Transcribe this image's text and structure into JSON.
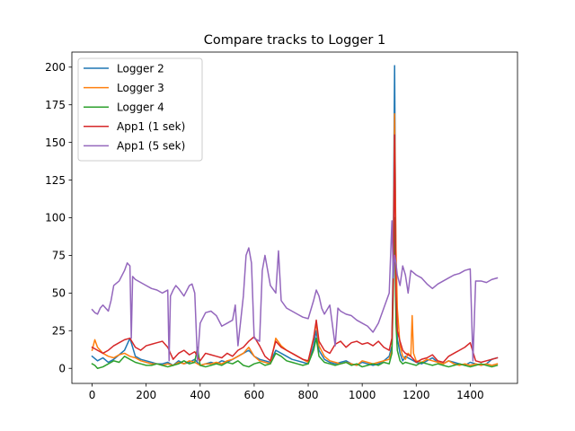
{
  "chart_data": {
    "type": "line",
    "title": "Compare tracks to Logger 1",
    "xlabel": "",
    "ylabel": "",
    "xlim": [
      -75,
      1575
    ],
    "ylim": [
      -10,
      210
    ],
    "xticks": [
      0,
      200,
      400,
      600,
      800,
      1000,
      1200,
      1400
    ],
    "yticks": [
      0,
      25,
      50,
      75,
      100,
      125,
      150,
      175,
      200
    ],
    "grid": false,
    "legend_position": "top-left",
    "series": [
      {
        "name": "Logger 2",
        "color": "#1f77b4",
        "x": [
          0,
          20,
          40,
          60,
          80,
          100,
          120,
          140,
          160,
          180,
          200,
          220,
          240,
          260,
          280,
          300,
          320,
          340,
          360,
          380,
          400,
          420,
          440,
          460,
          480,
          500,
          520,
          540,
          560,
          580,
          600,
          620,
          640,
          660,
          680,
          700,
          720,
          740,
          760,
          780,
          800,
          820,
          830,
          840,
          860,
          880,
          900,
          920,
          940,
          960,
          980,
          1000,
          1020,
          1040,
          1060,
          1080,
          1100,
          1110,
          1115,
          1120,
          1125,
          1130,
          1140,
          1150,
          1160,
          1180,
          1200,
          1220,
          1240,
          1260,
          1280,
          1300,
          1320,
          1340,
          1360,
          1380,
          1400,
          1420,
          1440,
          1460,
          1480,
          1500
        ],
        "y": [
          8,
          5,
          7,
          4,
          6,
          9,
          12,
          20,
          8,
          6,
          5,
          4,
          3,
          3,
          4,
          2,
          5,
          3,
          4,
          6,
          2,
          3,
          4,
          3,
          5,
          4,
          6,
          8,
          10,
          12,
          8,
          6,
          5,
          4,
          12,
          10,
          8,
          6,
          5,
          4,
          3,
          15,
          25,
          12,
          6,
          4,
          3,
          4,
          5,
          3,
          2,
          4,
          3,
          2,
          3,
          5,
          8,
          15,
          80,
          201,
          60,
          20,
          10,
          5,
          8,
          6,
          4,
          3,
          5,
          7,
          4,
          3,
          5,
          4,
          3,
          2,
          4,
          3,
          2,
          3,
          6,
          7
        ]
      },
      {
        "name": "Logger 3",
        "color": "#ff7f0e",
        "x": [
          0,
          10,
          20,
          40,
          60,
          80,
          100,
          120,
          140,
          160,
          180,
          200,
          220,
          240,
          260,
          280,
          300,
          320,
          340,
          360,
          380,
          400,
          420,
          440,
          460,
          480,
          500,
          520,
          540,
          560,
          580,
          600,
          620,
          640,
          660,
          680,
          700,
          720,
          740,
          760,
          780,
          800,
          820,
          830,
          840,
          860,
          880,
          900,
          920,
          940,
          960,
          980,
          1000,
          1020,
          1040,
          1060,
          1080,
          1100,
          1110,
          1115,
          1120,
          1125,
          1130,
          1140,
          1150,
          1160,
          1170,
          1180,
          1185,
          1190,
          1200,
          1220,
          1240,
          1260,
          1280,
          1300,
          1320,
          1340,
          1360,
          1380,
          1400,
          1420,
          1440,
          1460,
          1480,
          1500
        ],
        "y": [
          12,
          19,
          14,
          10,
          8,
          7,
          9,
          10,
          8,
          7,
          5,
          4,
          3,
          3,
          2,
          3,
          2,
          4,
          3,
          5,
          4,
          2,
          3,
          3,
          4,
          3,
          5,
          6,
          8,
          10,
          14,
          8,
          5,
          4,
          3,
          20,
          15,
          12,
          10,
          8,
          6,
          4,
          20,
          30,
          15,
          8,
          5,
          4,
          3,
          4,
          3,
          2,
          5,
          4,
          3,
          4,
          5,
          6,
          12,
          60,
          169,
          80,
          40,
          15,
          8,
          6,
          10,
          8,
          35,
          10,
          5,
          4,
          6,
          5,
          4,
          3,
          5,
          3,
          2,
          3,
          2,
          3,
          2,
          3,
          2,
          3
        ]
      },
      {
        "name": "Logger 4",
        "color": "#2ca02c",
        "x": [
          0,
          10,
          20,
          40,
          60,
          80,
          100,
          120,
          140,
          160,
          180,
          200,
          220,
          240,
          260,
          280,
          300,
          320,
          340,
          360,
          380,
          390,
          400,
          420,
          440,
          460,
          480,
          500,
          520,
          540,
          560,
          580,
          600,
          620,
          640,
          660,
          680,
          700,
          720,
          740,
          760,
          780,
          800,
          820,
          830,
          840,
          860,
          880,
          900,
          920,
          940,
          960,
          980,
          1000,
          1020,
          1040,
          1060,
          1080,
          1100,
          1110,
          1115,
          1120,
          1125,
          1130,
          1140,
          1150,
          1160,
          1180,
          1200,
          1220,
          1240,
          1260,
          1280,
          1300,
          1320,
          1340,
          1360,
          1380,
          1400,
          1420,
          1440,
          1460,
          1480,
          1500
        ],
        "y": [
          3,
          2,
          0,
          1,
          3,
          5,
          4,
          8,
          6,
          4,
          3,
          2,
          2,
          3,
          2,
          1,
          2,
          3,
          5,
          3,
          4,
          14,
          2,
          1,
          2,
          3,
          2,
          4,
          3,
          5,
          2,
          1,
          3,
          4,
          2,
          3,
          10,
          8,
          5,
          4,
          3,
          2,
          3,
          12,
          20,
          8,
          4,
          3,
          2,
          3,
          4,
          2,
          3,
          1,
          2,
          3,
          2,
          4,
          3,
          10,
          50,
          100,
          30,
          12,
          5,
          3,
          4,
          3,
          2,
          4,
          3,
          2,
          3,
          2,
          1,
          2,
          3,
          2,
          1,
          2,
          3,
          2,
          1,
          2
        ]
      },
      {
        "name": "App1 (1 sek)",
        "color": "#d62728",
        "x": [
          0,
          20,
          40,
          60,
          80,
          100,
          120,
          140,
          160,
          180,
          200,
          220,
          240,
          260,
          280,
          300,
          320,
          340,
          360,
          380,
          400,
          420,
          440,
          460,
          480,
          500,
          520,
          540,
          560,
          580,
          600,
          620,
          640,
          660,
          680,
          700,
          720,
          740,
          760,
          780,
          800,
          820,
          830,
          840,
          860,
          880,
          900,
          920,
          940,
          960,
          980,
          1000,
          1020,
          1040,
          1060,
          1080,
          1100,
          1110,
          1115,
          1120,
          1125,
          1130,
          1140,
          1150,
          1160,
          1180,
          1200,
          1220,
          1240,
          1260,
          1280,
          1300,
          1320,
          1340,
          1360,
          1380,
          1400,
          1420,
          1440,
          1460,
          1480,
          1500
        ],
        "y": [
          14,
          12,
          10,
          12,
          15,
          17,
          19,
          20,
          14,
          12,
          15,
          16,
          17,
          18,
          14,
          6,
          10,
          12,
          9,
          11,
          5,
          10,
          9,
          8,
          7,
          10,
          8,
          12,
          14,
          18,
          21,
          15,
          8,
          5,
          18,
          14,
          12,
          10,
          8,
          6,
          5,
          20,
          32,
          18,
          12,
          10,
          16,
          18,
          14,
          17,
          18,
          16,
          17,
          15,
          18,
          14,
          12,
          20,
          60,
          155,
          50,
          25,
          18,
          12,
          10,
          8,
          4,
          6,
          7,
          9,
          5,
          4,
          8,
          10,
          12,
          14,
          17,
          5,
          4,
          5,
          6,
          7
        ]
      },
      {
        "name": "App1 (5 sek)",
        "color": "#9467bd",
        "x": [
          0,
          10,
          20,
          30,
          40,
          60,
          70,
          80,
          100,
          120,
          130,
          140,
          145,
          150,
          160,
          180,
          200,
          220,
          240,
          260,
          270,
          280,
          285,
          290,
          300,
          310,
          320,
          340,
          360,
          370,
          380,
          390,
          400,
          420,
          440,
          460,
          480,
          500,
          520,
          530,
          540,
          560,
          570,
          580,
          590,
          600,
          620,
          630,
          640,
          660,
          680,
          690,
          700,
          720,
          740,
          760,
          780,
          800,
          820,
          830,
          840,
          850,
          860,
          880,
          900,
          910,
          920,
          940,
          960,
          980,
          1000,
          1020,
          1040,
          1060,
          1080,
          1100,
          1110,
          1115,
          1120,
          1125,
          1130,
          1140,
          1150,
          1160,
          1170,
          1180,
          1200,
          1220,
          1240,
          1260,
          1280,
          1300,
          1320,
          1340,
          1360,
          1380,
          1400,
          1410,
          1420,
          1440,
          1460,
          1480,
          1500
        ],
        "y": [
          39,
          37,
          36,
          40,
          42,
          38,
          45,
          55,
          58,
          65,
          70,
          68,
          20,
          61,
          59,
          57,
          55,
          53,
          52,
          50,
          51,
          52,
          5,
          48,
          52,
          55,
          53,
          48,
          55,
          56,
          50,
          5,
          30,
          37,
          38,
          35,
          28,
          30,
          32,
          42,
          15,
          48,
          75,
          80,
          70,
          20,
          18,
          65,
          75,
          55,
          50,
          78,
          45,
          40,
          38,
          36,
          34,
          33,
          45,
          52,
          48,
          40,
          36,
          42,
          15,
          40,
          38,
          36,
          35,
          32,
          30,
          28,
          24,
          30,
          40,
          50,
          98,
          60,
          75,
          70,
          62,
          55,
          68,
          62,
          50,
          65,
          62,
          60,
          56,
          53,
          56,
          58,
          60,
          62,
          63,
          65,
          66,
          5,
          58,
          58,
          57,
          59,
          60
        ]
      }
    ]
  }
}
